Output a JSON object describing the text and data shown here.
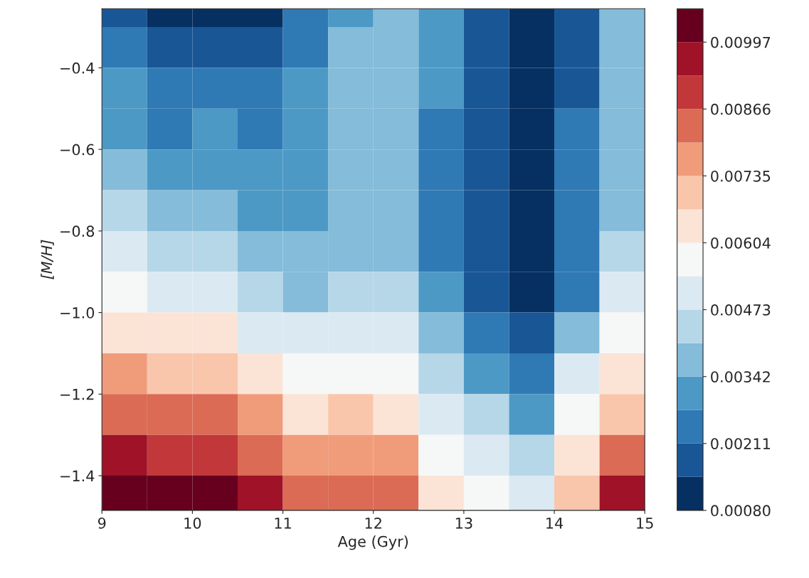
{
  "chart_data": {
    "type": "heatmap",
    "xlabel": "Age (Gyr)",
    "ylabel": "[M/H]",
    "x": [
      9.25,
      9.75,
      10.25,
      10.75,
      11.25,
      11.75,
      12.25,
      12.75,
      13.25,
      13.75,
      14.25,
      14.75
    ],
    "y": [
      -0.25,
      -0.35,
      -0.45,
      -0.55,
      -0.65,
      -0.75,
      -0.85,
      -0.95,
      -1.05,
      -1.15,
      -1.25,
      -1.35,
      -1.45
    ],
    "cells": [
      [
        0.00178,
        0.00113,
        0.00113,
        0.00113,
        0.00244,
        0.00309,
        0.00375,
        0.00309,
        0.00178,
        0.00113,
        0.00178,
        0.00375
      ],
      [
        0.00244,
        0.00178,
        0.00178,
        0.00178,
        0.00244,
        0.00375,
        0.00375,
        0.00309,
        0.00178,
        0.00113,
        0.00178,
        0.00375
      ],
      [
        0.00309,
        0.00244,
        0.00244,
        0.00244,
        0.00309,
        0.00375,
        0.00375,
        0.00309,
        0.00178,
        0.00113,
        0.00178,
        0.00375
      ],
      [
        0.00309,
        0.00244,
        0.00309,
        0.00244,
        0.00309,
        0.00375,
        0.00375,
        0.00244,
        0.00178,
        0.00113,
        0.00244,
        0.00375
      ],
      [
        0.00375,
        0.00309,
        0.00309,
        0.00309,
        0.00309,
        0.00375,
        0.00375,
        0.00244,
        0.00178,
        0.00113,
        0.00244,
        0.00375
      ],
      [
        0.0044,
        0.00375,
        0.00375,
        0.00309,
        0.00309,
        0.00375,
        0.00375,
        0.00244,
        0.00178,
        0.00113,
        0.00244,
        0.00375
      ],
      [
        0.00506,
        0.0044,
        0.0044,
        0.00375,
        0.00375,
        0.00375,
        0.00375,
        0.00244,
        0.00178,
        0.00113,
        0.00244,
        0.0044
      ],
      [
        0.00571,
        0.00506,
        0.00506,
        0.0044,
        0.00375,
        0.0044,
        0.0044,
        0.00309,
        0.00178,
        0.00113,
        0.00244,
        0.00506
      ],
      [
        0.00637,
        0.00637,
        0.00637,
        0.00506,
        0.00506,
        0.00506,
        0.00506,
        0.00375,
        0.00244,
        0.00178,
        0.00375,
        0.00571
      ],
      [
        0.00768,
        0.00702,
        0.00702,
        0.00637,
        0.00571,
        0.00571,
        0.00571,
        0.0044,
        0.00309,
        0.00244,
        0.00506,
        0.00637
      ],
      [
        0.00833,
        0.00833,
        0.00833,
        0.00768,
        0.00637,
        0.00702,
        0.00637,
        0.00506,
        0.0044,
        0.00309,
        0.00571,
        0.00702
      ],
      [
        0.00964,
        0.00899,
        0.00899,
        0.00833,
        0.00768,
        0.00768,
        0.00768,
        0.00571,
        0.00506,
        0.0044,
        0.00637,
        0.00833
      ],
      [
        0.0103,
        0.0103,
        0.0103,
        0.00964,
        0.00833,
        0.00833,
        0.00833,
        0.00637,
        0.00571,
        0.00506,
        0.00702,
        0.00964
      ]
    ],
    "xlim": [
      9,
      15
    ],
    "ylim": [
      -1.485,
      -0.255
    ],
    "xticks": [
      9,
      10,
      11,
      12,
      13,
      14,
      15
    ],
    "yticks": [
      {
        "value": -1.4,
        "label": "−1.4"
      },
      {
        "value": -1.2,
        "label": "−1.2"
      },
      {
        "value": -1.0,
        "label": "−1.0"
      },
      {
        "value": -0.8,
        "label": "−0.8"
      },
      {
        "value": -0.6,
        "label": "−0.6"
      },
      {
        "value": -0.4,
        "label": "−0.4"
      }
    ],
    "clim": [
      0.0008,
      0.010625
    ],
    "cticks": [
      {
        "value": 0.0008,
        "label": "0.00080"
      },
      {
        "value": 0.00211,
        "label": "0.00211"
      },
      {
        "value": 0.00342,
        "label": "0.00342"
      },
      {
        "value": 0.00473,
        "label": "0.00473"
      },
      {
        "value": 0.00604,
        "label": "0.00604"
      },
      {
        "value": 0.00735,
        "label": "0.00735"
      },
      {
        "value": 0.00866,
        "label": "0.00866"
      },
      {
        "value": 0.00997,
        "label": "0.00997"
      }
    ]
  }
}
